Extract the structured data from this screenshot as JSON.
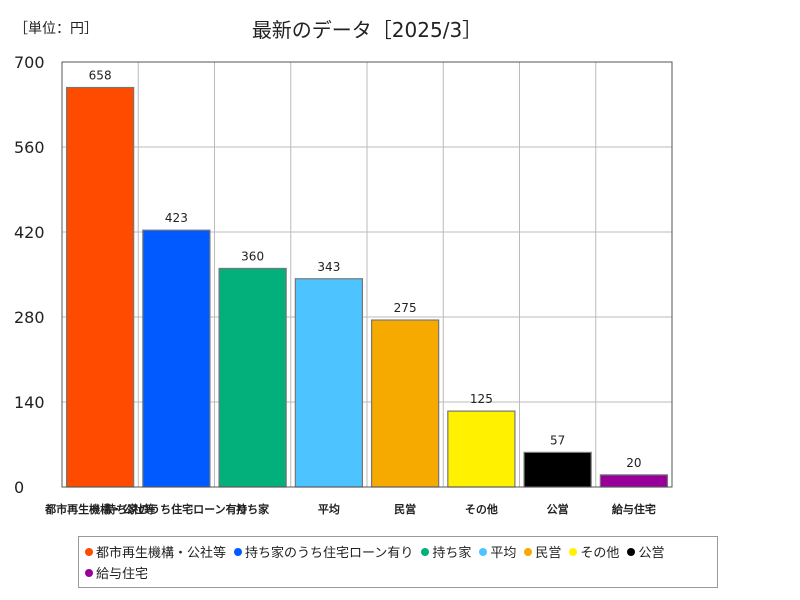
{
  "unit_label": "［単位：円］",
  "chart_data": {
    "type": "bar",
    "title": "最新のデータ［2025/3］",
    "categories": [
      "都市再生機構・公社等",
      "持ち家のうち住宅ローン有り",
      "持ち家",
      "平均",
      "民営",
      "その他",
      "公営",
      "給与住宅"
    ],
    "values": [
      658,
      423,
      360,
      343,
      275,
      125,
      57,
      20
    ],
    "value_labels": [
      "658",
      "423",
      "360",
      "343",
      "275",
      "125",
      "57",
      "20"
    ],
    "colors": [
      "#ff4b00",
      "#005aff",
      "#03af7a",
      "#4dc4ff",
      "#f6aa00",
      "#fff100",
      "#000000",
      "#990099"
    ],
    "ylim": [
      0,
      700
    ],
    "yticks": [
      "0",
      "140",
      "280",
      "420",
      "560",
      "700"
    ],
    "grid": true,
    "legend": "bottom"
  }
}
